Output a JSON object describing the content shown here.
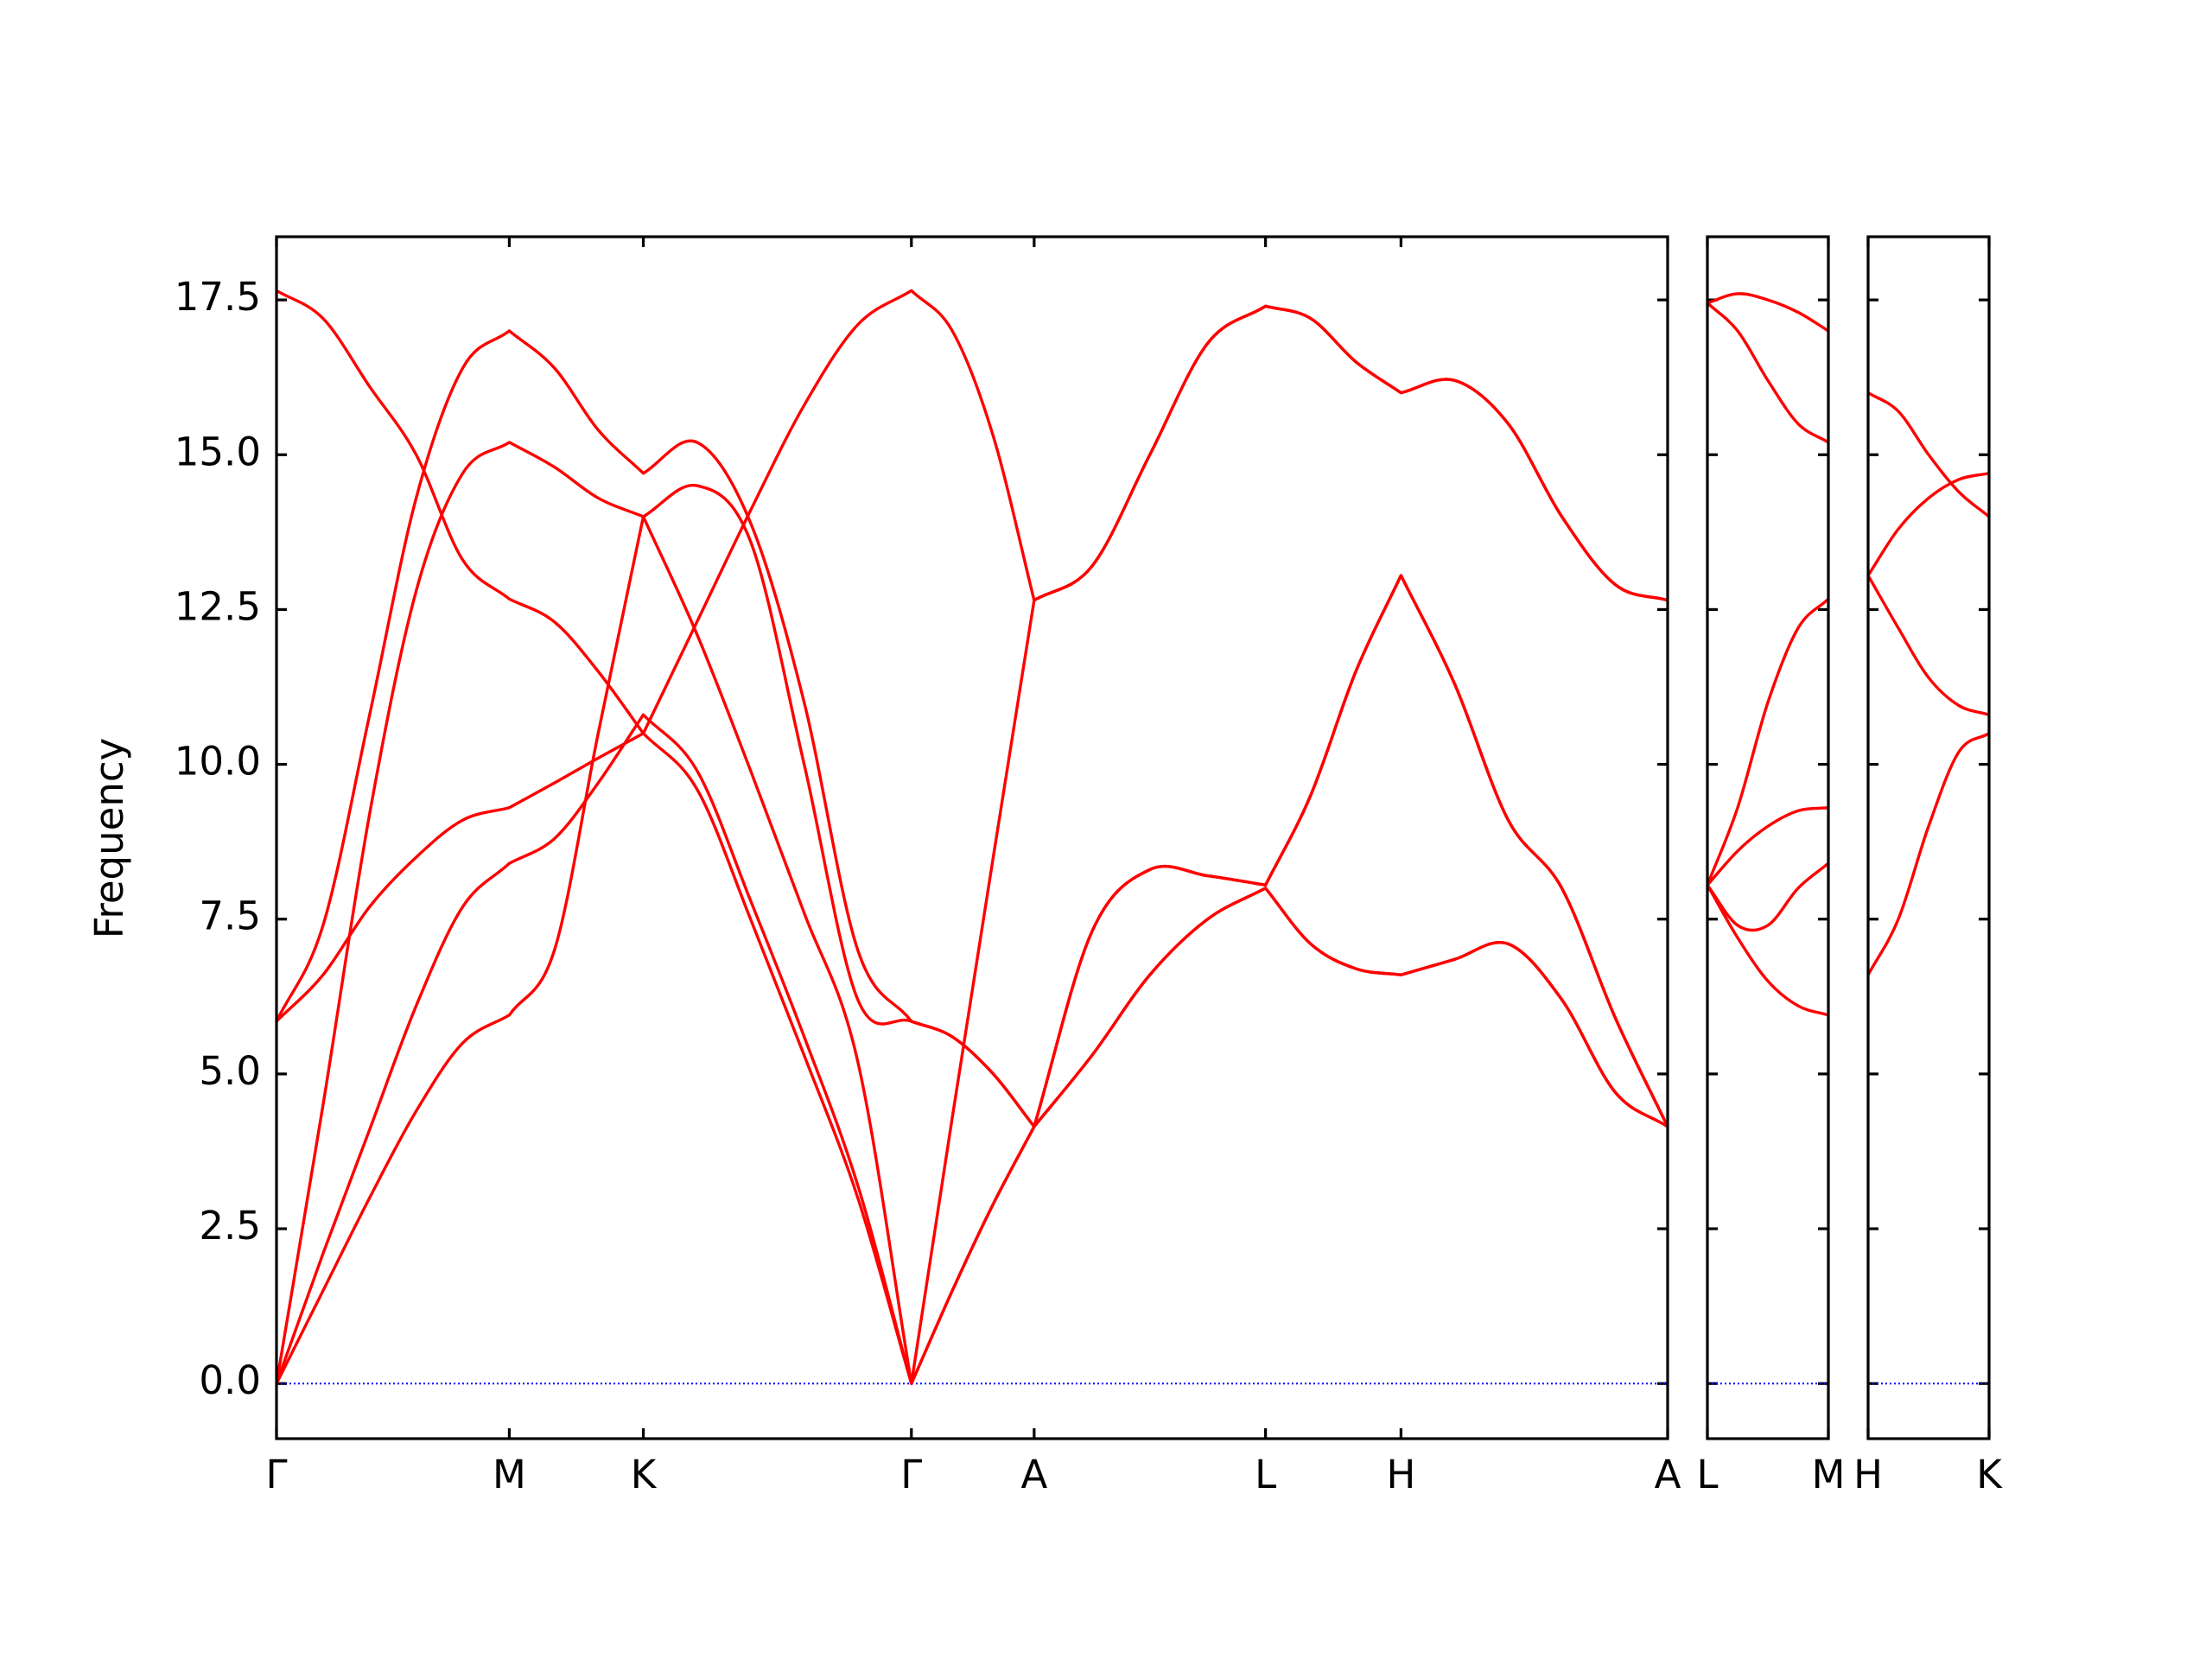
{
  "chart_data": [
    {
      "type": "line",
      "ylabel": "Frequency",
      "ylim": [
        -0.89,
        18.52
      ],
      "yticks": [
        {
          "value": 0,
          "label": "0.0"
        },
        2.5,
        {
          "value": 5,
          "label": "5.0"
        },
        7.5,
        {
          "value": 10,
          "label": "10.0"
        },
        12.5,
        {
          "value": 15,
          "label": "15.0"
        },
        17.5
      ],
      "xlim": [
        0,
        9.86
      ],
      "xticks": [
        {
          "value": 0,
          "label": "Γ"
        },
        {
          "value": 1.65,
          "label": "M"
        },
        {
          "value": 2.6,
          "label": "K"
        },
        {
          "value": 4.5,
          "label": "Γ"
        },
        {
          "value": 5.37,
          "label": "A"
        },
        {
          "value": 7.01,
          "label": "L"
        },
        {
          "value": 7.97,
          "label": "H"
        },
        {
          "value": 9.86,
          "label": "A"
        }
      ],
      "hlines": [
        {
          "y": 0,
          "color": "#0000ff"
        }
      ],
      "x": [
        0,
        0.33,
        0.66,
        0.99,
        1.32,
        1.65,
        1.97,
        2.28,
        2.6,
        2.98,
        3.36,
        3.74,
        4.12,
        4.5,
        4.79,
        5.08,
        5.37,
        5.78,
        6.19,
        6.6,
        7.01,
        7.33,
        7.65,
        7.97,
        8.35,
        8.73,
        9.11,
        9.49,
        9.86
      ],
      "series": [
        {
          "color": "#ff0000",
          "values": [
            0,
            1.5,
            3.0,
            4.4,
            5.5,
            5.95,
            7.0,
            10.5,
            14.0,
            12.1,
            9.9,
            7.6,
            5.2,
            0,
            1.5,
            2.9,
            4.15,
            5.3,
            6.6,
            7.5,
            8.0,
            7.1,
            6.7,
            6.6,
            6.85,
            7.1,
            6.2,
            4.7,
            4.15
          ]
        },
        {
          "color": "#ff0000",
          "values": [
            0,
            2.1,
            4.1,
            6.1,
            7.7,
            8.4,
            8.8,
            9.7,
            10.8,
            9.9,
            7.8,
            5.6,
            3.2,
            0,
            1.5,
            2.9,
            4.15,
            5.3,
            6.6,
            7.5,
            8.0,
            7.1,
            6.7,
            6.6,
            6.85,
            7.1,
            6.2,
            4.7,
            4.15
          ]
        },
        {
          "color": "#ff0000",
          "values": [
            0,
            4.5,
            9.2,
            12.8,
            14.7,
            15.2,
            14.8,
            14.3,
            14.0,
            14.5,
            13.6,
            10.0,
            6.2,
            5.85,
            5.6,
            5.0,
            4.15,
            7.3,
            8.3,
            8.2,
            8.05,
            9.5,
            11.5,
            13.05,
            11.3,
            9.1,
            8.0,
            5.9,
            4.15
          ]
        },
        {
          "color": "#ff0000",
          "values": [
            5.85,
            6.6,
            7.7,
            8.5,
            9.1,
            9.3,
            9.7,
            10.1,
            10.5,
            12.3,
            14.1,
            15.8,
            17.1,
            17.65,
            17.0,
            15.3,
            12.65,
            13.2,
            15.0,
            16.8,
            17.4,
            17.2,
            16.5,
            16.0,
            16.2,
            15.5,
            14.0,
            12.9,
            12.65
          ]
        },
        {
          "color": "#ff0000",
          "values": [
            5.85,
            7.4,
            10.8,
            14.3,
            16.4,
            17.0,
            16.4,
            15.4,
            14.7,
            15.2,
            13.9,
            11.0,
            7.0,
            5.85,
            5.6,
            5.0,
            4.15,
            7.3,
            8.3,
            8.2,
            8.05,
            9.5,
            11.5,
            13.05,
            11.3,
            9.1,
            8.0,
            5.9,
            4.15
          ]
        },
        {
          "color": "#ff0000",
          "values": [
            17.65,
            17.2,
            16.1,
            15.0,
            13.3,
            12.67,
            12.3,
            11.5,
            10.5,
            9.6,
            7.5,
            5.3,
            3.0,
            0,
            4.3,
            8.5,
            12.65,
            13.2,
            15.0,
            16.8,
            17.4,
            17.2,
            16.5,
            16.0,
            16.2,
            15.5,
            14.0,
            12.9,
            12.65
          ]
        }
      ]
    },
    {
      "type": "line",
      "xlim": [
        0,
        0.86
      ],
      "xticks": [
        {
          "value": 0,
          "label": "L"
        },
        {
          "value": 0.86,
          "label": "M"
        }
      ],
      "hlines": [
        {
          "y": 0,
          "color": "#0000ff"
        }
      ],
      "x": [
        0,
        0.215,
        0.43,
        0.645,
        0.86
      ],
      "series": [
        {
          "color": "#ff0000",
          "values": [
            17.45,
            17.6,
            17.5,
            17.3,
            17.0
          ]
        },
        {
          "color": "#ff0000",
          "values": [
            17.45,
            17.0,
            16.2,
            15.5,
            15.2
          ]
        },
        {
          "color": "#ff0000",
          "values": [
            8.05,
            9.3,
            11.0,
            12.2,
            12.67
          ]
        },
        {
          "color": "#ff0000",
          "values": [
            8.05,
            8.6,
            9.0,
            9.25,
            9.3
          ]
        },
        {
          "color": "#ff0000",
          "values": [
            8.05,
            7.4,
            7.4,
            8.0,
            8.4
          ]
        },
        {
          "color": "#ff0000",
          "values": [
            8.05,
            7.2,
            6.5,
            6.1,
            5.95
          ]
        }
      ]
    },
    {
      "type": "line",
      "xlim": [
        0,
        0.86
      ],
      "xticks": [
        {
          "value": 0,
          "label": "H"
        },
        {
          "value": 0.86,
          "label": "K"
        }
      ],
      "hlines": [
        {
          "y": 0,
          "color": "#0000ff"
        }
      ],
      "x": [
        0,
        0.215,
        0.43,
        0.645,
        0.86
      ],
      "series": [
        {
          "color": "#ff0000",
          "values": [
            16.0,
            15.7,
            15.0,
            14.4,
            14.0
          ]
        },
        {
          "color": "#ff0000",
          "values": [
            13.05,
            13.8,
            14.3,
            14.6,
            14.7
          ]
        },
        {
          "color": "#ff0000",
          "values": [
            13.05,
            12.2,
            11.4,
            10.95,
            10.8
          ]
        },
        {
          "color": "#ff0000",
          "values": [
            6.6,
            7.5,
            9.0,
            10.2,
            10.5
          ]
        }
      ]
    }
  ]
}
